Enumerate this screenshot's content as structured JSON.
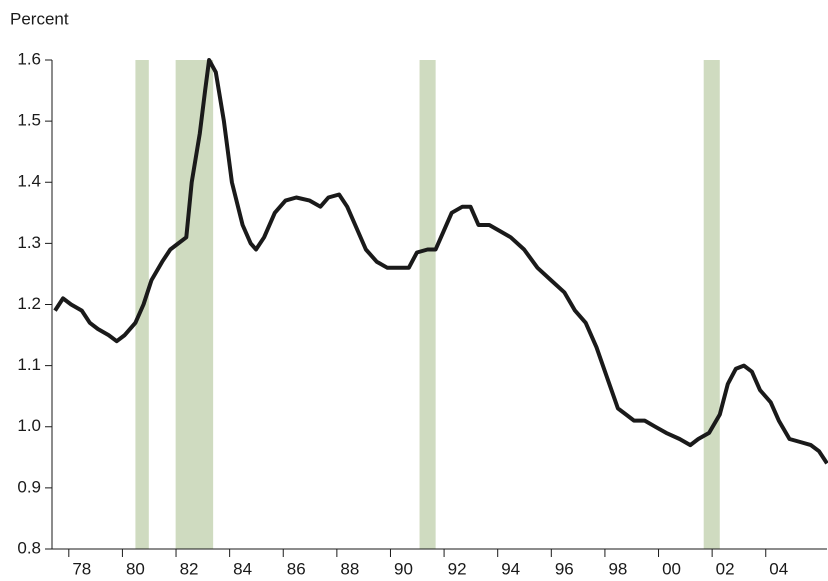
{
  "chart_data": {
    "type": "line",
    "ylabel": "Percent",
    "x": [
      1977.0,
      1977.3,
      1977.6,
      1978.0,
      1978.3,
      1978.6,
      1979.0,
      1979.3,
      1979.6,
      1980.0,
      1980.3,
      1980.6,
      1981.0,
      1981.3,
      1981.6,
      1981.9,
      1982.1,
      1982.4,
      1982.6,
      1982.75,
      1983.0,
      1983.3,
      1983.6,
      1984.0,
      1984.3,
      1984.5,
      1984.8,
      1985.2,
      1985.6,
      1986.0,
      1986.5,
      1986.9,
      1987.2,
      1987.6,
      1987.9,
      1988.2,
      1988.6,
      1989.0,
      1989.4,
      1989.8,
      1990.2,
      1990.5,
      1990.9,
      1991.2,
      1991.5,
      1991.8,
      1992.2,
      1992.5,
      1992.8,
      1993.2,
      1993.6,
      1994.0,
      1994.5,
      1995.0,
      1995.5,
      1996.0,
      1996.4,
      1996.8,
      1997.2,
      1997.6,
      1998.0,
      1998.3,
      1998.6,
      1999.0,
      1999.4,
      1999.8,
      2000.3,
      2000.7,
      2001.0,
      2001.4,
      2001.8,
      2002.1,
      2002.4,
      2002.7,
      2003.0,
      2003.3,
      2003.7,
      2004.0,
      2004.4,
      2004.8,
      2005.2,
      2005.5,
      2005.8
    ],
    "series": [
      {
        "color": "#1a1a1a",
        "values": [
          1.19,
          1.21,
          1.2,
          1.19,
          1.17,
          1.16,
          1.15,
          1.14,
          1.15,
          1.17,
          1.2,
          1.24,
          1.27,
          1.29,
          1.3,
          1.31,
          1.4,
          1.48,
          1.55,
          1.6,
          1.58,
          1.5,
          1.4,
          1.33,
          1.3,
          1.29,
          1.31,
          1.35,
          1.37,
          1.375,
          1.37,
          1.36,
          1.375,
          1.38,
          1.36,
          1.33,
          1.29,
          1.27,
          1.26,
          1.26,
          1.26,
          1.285,
          1.29,
          1.29,
          1.32,
          1.35,
          1.36,
          1.36,
          1.33,
          1.33,
          1.32,
          1.31,
          1.29,
          1.26,
          1.24,
          1.22,
          1.19,
          1.17,
          1.13,
          1.08,
          1.03,
          1.02,
          1.01,
          1.01,
          1.0,
          0.99,
          0.98,
          0.97,
          0.98,
          0.99,
          1.02,
          1.07,
          1.095,
          1.1,
          1.09,
          1.06,
          1.04,
          1.01,
          0.98,
          0.975,
          0.97,
          0.96,
          0.94
        ]
      }
    ],
    "shaded_periods": [
      [
        1980.0,
        1980.5
      ],
      [
        1981.5,
        1982.9
      ],
      [
        1990.6,
        1991.2
      ],
      [
        2001.2,
        2001.8
      ]
    ],
    "shade_color": "#cfdbc0",
    "xlim": [
      1977.0,
      2005.8
    ],
    "xticks": [
      {
        "value": 1978,
        "label": "78"
      },
      {
        "value": 1980,
        "label": "80"
      },
      {
        "value": 1982,
        "label": "82"
      },
      {
        "value": 1984,
        "label": "84"
      },
      {
        "value": 1986,
        "label": "86"
      },
      {
        "value": 1988,
        "label": "88"
      },
      {
        "value": 1990,
        "label": "90"
      },
      {
        "value": 1992,
        "label": "92"
      },
      {
        "value": 1994,
        "label": "94"
      },
      {
        "value": 1996,
        "label": "96"
      },
      {
        "value": 1998,
        "label": "98"
      },
      {
        "value": 2000,
        "label": "00"
      },
      {
        "value": 2002,
        "label": "02"
      },
      {
        "value": 2004,
        "label": "04"
      }
    ],
    "ylim": [
      0.8,
      1.6
    ],
    "yticks": [
      0.8,
      0.9,
      {
        "value": 1,
        "label": "1.0"
      },
      1.1,
      1.2,
      1.3,
      1.4,
      1.5,
      1.6
    ]
  }
}
